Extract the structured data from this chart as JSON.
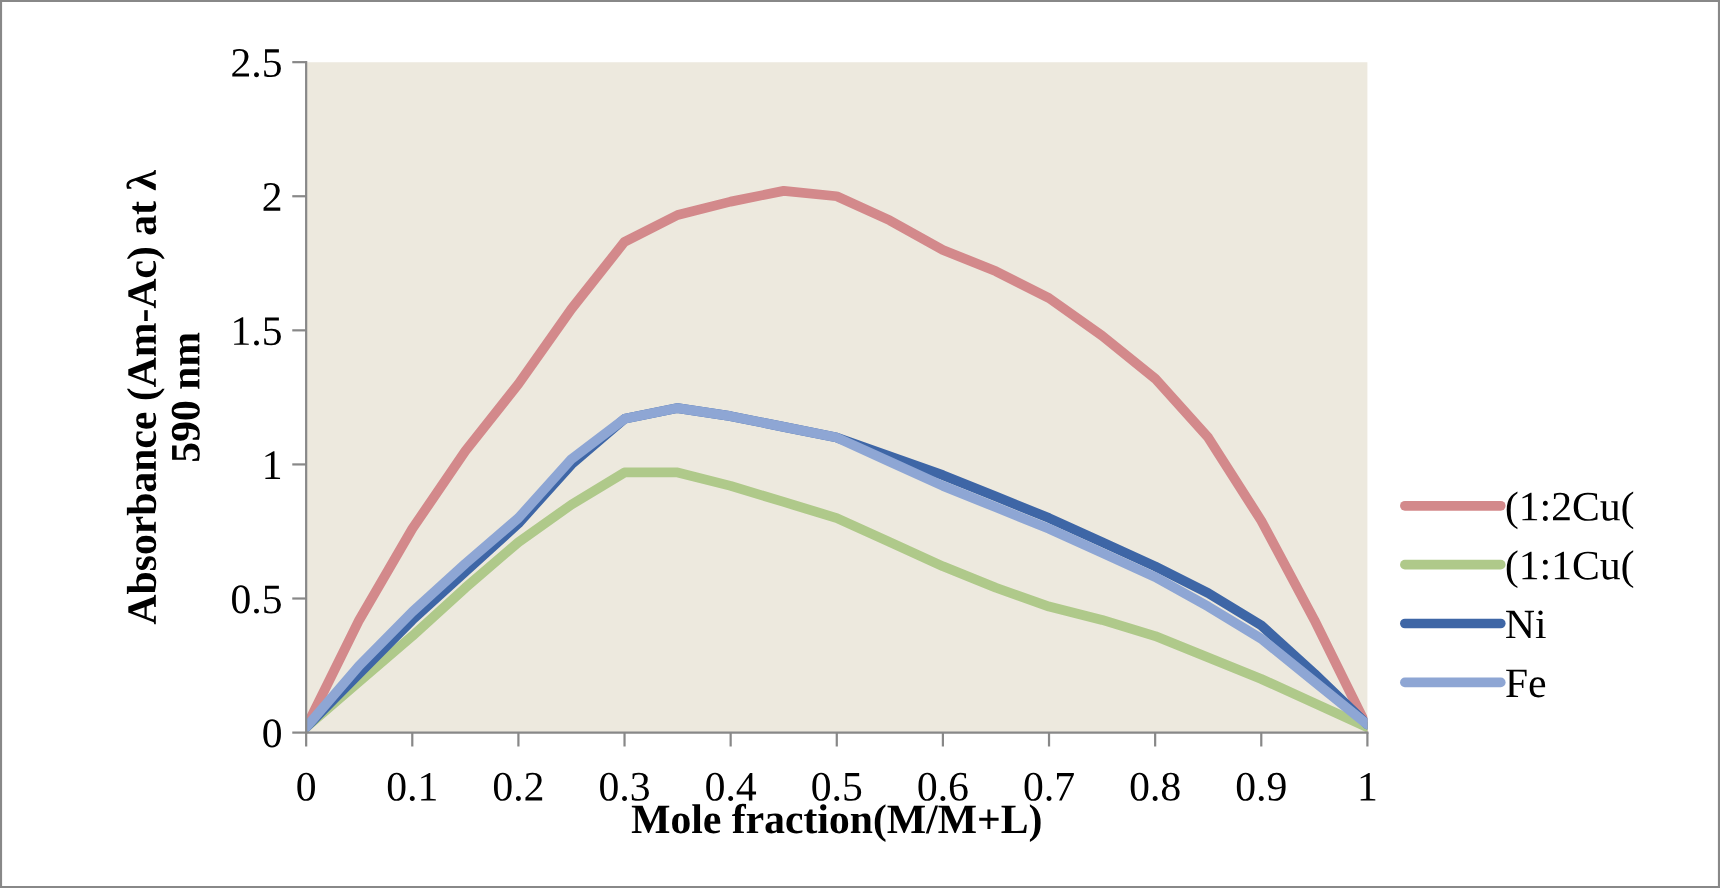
{
  "chart_data": {
    "type": "line",
    "xlabel": "Mole fraction(M/M+L)",
    "ylabel": "Absorbance (Am-Ac) at λ\n590 nm",
    "x": [
      0,
      0.05,
      0.1,
      0.15,
      0.2,
      0.25,
      0.3,
      0.35,
      0.4,
      0.45,
      0.5,
      0.55,
      0.6,
      0.65,
      0.7,
      0.75,
      0.8,
      0.85,
      0.9,
      0.95,
      1
    ],
    "series": [
      {
        "name": "(1:2Cu(",
        "color": "#d3898b",
        "values": [
          0.02,
          0.42,
          0.76,
          1.05,
          1.3,
          1.58,
          1.83,
          1.93,
          1.98,
          2.02,
          2.0,
          1.91,
          1.8,
          1.72,
          1.62,
          1.48,
          1.32,
          1.1,
          0.79,
          0.42,
          0.02
        ]
      },
      {
        "name": "(1:1Cu(",
        "color": "#afc98a",
        "values": [
          0.02,
          0.19,
          0.36,
          0.54,
          0.71,
          0.85,
          0.97,
          0.97,
          0.92,
          0.86,
          0.8,
          0.71,
          0.62,
          0.54,
          0.47,
          0.42,
          0.36,
          0.28,
          0.2,
          0.11,
          0.02
        ]
      },
      {
        "name": "Ni",
        "color": "#3e66a6",
        "values": [
          0.02,
          0.22,
          0.42,
          0.6,
          0.78,
          1.0,
          1.17,
          1.21,
          1.18,
          1.14,
          1.1,
          1.03,
          0.96,
          0.88,
          0.8,
          0.71,
          0.62,
          0.52,
          0.4,
          0.22,
          0.03
        ]
      },
      {
        "name": "Fe",
        "color": "#8ea6d4",
        "values": [
          0.02,
          0.25,
          0.45,
          0.63,
          0.8,
          1.02,
          1.17,
          1.21,
          1.18,
          1.14,
          1.1,
          1.01,
          0.92,
          0.84,
          0.76,
          0.67,
          0.58,
          0.47,
          0.35,
          0.19,
          0.03
        ]
      }
    ],
    "xlim": [
      0,
      1
    ],
    "ylim": [
      0,
      2.5
    ],
    "xticks": [
      0,
      0.1,
      0.2,
      0.3,
      0.4,
      0.5,
      0.6,
      0.7,
      0.8,
      0.9,
      1
    ],
    "yticks": [
      0,
      0.5,
      1,
      1.5,
      2,
      2.5
    ],
    "grid": false,
    "legend": "right",
    "marker": "none",
    "line_style": "solid"
  }
}
